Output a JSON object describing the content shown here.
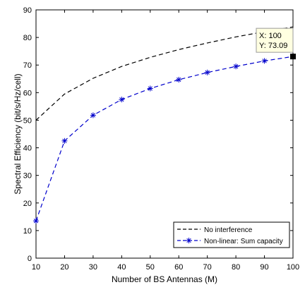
{
  "chart_data": {
    "type": "line",
    "xlabel": "Number of BS Antennas (M)",
    "ylabel": "Spectral Efficiency (bit/s/Hz/cell)",
    "xlim": [
      10,
      100
    ],
    "ylim": [
      0,
      90
    ],
    "xticks": [
      10,
      20,
      30,
      40,
      50,
      60,
      70,
      80,
      90,
      100
    ],
    "yticks": [
      0,
      10,
      20,
      30,
      40,
      50,
      60,
      70,
      80,
      90
    ],
    "grid": false,
    "legend_position": "bottom-right",
    "x": [
      10,
      20,
      30,
      40,
      50,
      60,
      70,
      80,
      90,
      100
    ],
    "series": [
      {
        "name": "No interference",
        "color": "#000000",
        "line_style": "dashed",
        "marker": "none",
        "values": [
          50,
          59.5,
          65.2,
          69.5,
          72.8,
          75.6,
          78,
          80.2,
          82.1,
          83.8
        ]
      },
      {
        "name": "Non-linear: Sum capacity",
        "color": "#0000cc",
        "line_style": "dashed",
        "marker": "asterisk",
        "values": [
          13.5,
          42.5,
          51.8,
          57.5,
          61.5,
          64.7,
          67.3,
          69.5,
          71.5,
          73.09
        ]
      }
    ],
    "datatip": {
      "series": "Non-linear: Sum capacity",
      "x": 100,
      "y": 73.09,
      "x_text": "X: 100",
      "y_text": "Y: 73.09",
      "background": "#ffffe1"
    }
  }
}
